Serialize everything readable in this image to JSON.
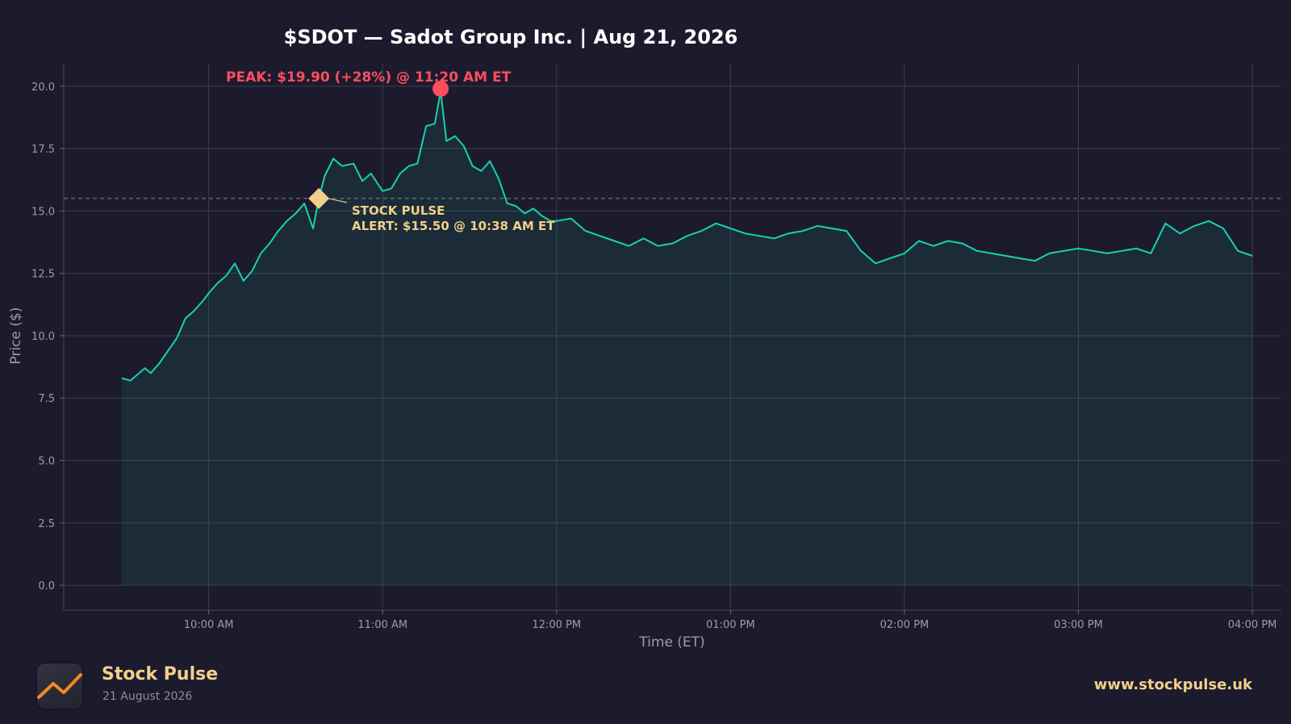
{
  "brand": {
    "name": "Stock Pulse",
    "date": "21 August 2026",
    "url": "www.stockpulse.uk",
    "logo_icon": "line-chart-logo-icon"
  },
  "colors": {
    "background": "#1c1b2e",
    "line": "#18d3a8",
    "peak": "#ff4d5e",
    "alert": "#f2cf8a",
    "grid": "#3c3c4f",
    "axis_text": "#9c9ba8"
  },
  "chart_data": {
    "type": "area",
    "title": "$SDOT — Sadot Group Inc.  |  Aug 21, 2026",
    "xlabel": "Time (ET)",
    "ylabel": "Price ($)",
    "ylim": [
      -1.0,
      20.9
    ],
    "yticks": [
      0.0,
      2.5,
      5.0,
      7.5,
      10.0,
      12.5,
      15.0,
      17.5,
      20.0
    ],
    "ytick_labels": [
      "0.0",
      "2.5",
      "5.0",
      "7.5",
      "10.0",
      "12.5",
      "15.0",
      "17.5",
      "20.0"
    ],
    "xlim": [
      "09:10",
      "16:10"
    ],
    "xticks": [
      "10:00",
      "11:00",
      "12:00",
      "13:00",
      "14:00",
      "15:00",
      "16:00"
    ],
    "xtick_labels": [
      "10:00 AM",
      "11:00 AM",
      "12:00 PM",
      "01:00 PM",
      "02:00 PM",
      "03:00 PM",
      "04:00 PM"
    ],
    "grid": true,
    "reference_line": {
      "y": 15.5,
      "style": "dashed"
    },
    "series": [
      {
        "x": [
          "09:30",
          "09:33",
          "09:36",
          "09:38",
          "09:40",
          "09:43",
          "09:46",
          "09:49",
          "09:52",
          "09:55",
          "09:58",
          "10:00",
          "10:03",
          "10:06",
          "10:09",
          "10:12",
          "10:15",
          "10:18",
          "10:21",
          "10:24",
          "10:27",
          "10:30",
          "10:33",
          "10:36",
          "10:38",
          "10:40",
          "10:43",
          "10:46",
          "10:50",
          "10:53",
          "10:56",
          "11:00",
          "11:03",
          "11:06",
          "11:09",
          "11:12",
          "11:15",
          "11:18",
          "11:20",
          "11:22",
          "11:25",
          "11:28",
          "11:31",
          "11:34",
          "11:37",
          "11:40",
          "11:43",
          "11:46",
          "11:49",
          "11:52",
          "11:55",
          "11:58",
          "12:00",
          "12:05",
          "12:10",
          "12:15",
          "12:20",
          "12:25",
          "12:30",
          "12:35",
          "12:40",
          "12:45",
          "12:50",
          "12:55",
          "13:00",
          "13:05",
          "13:10",
          "13:15",
          "13:20",
          "13:25",
          "13:30",
          "13:35",
          "13:40",
          "13:45",
          "13:50",
          "13:55",
          "14:00",
          "14:05",
          "14:10",
          "14:15",
          "14:20",
          "14:25",
          "14:30",
          "14:35",
          "14:40",
          "14:45",
          "14:50",
          "14:55",
          "15:00",
          "15:05",
          "15:10",
          "15:15",
          "15:20",
          "15:25",
          "15:30",
          "15:35",
          "15:40",
          "15:45",
          "15:50",
          "15:55",
          "16:00"
        ],
        "values": [
          8.3,
          8.2,
          8.5,
          8.7,
          8.5,
          8.9,
          9.4,
          9.9,
          10.7,
          11.0,
          11.4,
          11.7,
          12.1,
          12.4,
          12.9,
          12.2,
          12.6,
          13.3,
          13.7,
          14.2,
          14.6,
          14.9,
          15.3,
          14.3,
          15.5,
          16.4,
          17.1,
          16.8,
          16.9,
          16.2,
          16.5,
          15.8,
          15.9,
          16.5,
          16.8,
          16.9,
          18.4,
          18.5,
          19.8,
          17.8,
          18.0,
          17.6,
          16.8,
          16.6,
          17.0,
          16.3,
          15.3,
          15.2,
          14.9,
          15.1,
          14.8,
          14.6,
          14.6,
          14.7,
          14.2,
          14.0,
          13.8,
          13.6,
          13.9,
          13.6,
          13.7,
          14.0,
          14.2,
          14.5,
          14.3,
          14.1,
          14.0,
          13.9,
          14.1,
          14.2,
          14.4,
          14.3,
          14.2,
          13.4,
          12.9,
          13.1,
          13.3,
          13.8,
          13.6,
          13.8,
          13.7,
          13.4,
          13.3,
          13.2,
          13.1,
          13.0,
          13.3,
          13.4,
          13.5,
          13.4,
          13.3,
          13.4,
          13.5,
          13.3,
          14.5,
          14.1,
          14.4,
          14.6,
          14.3,
          13.4,
          13.2
        ]
      }
    ],
    "annotations": [
      {
        "label": "PEAK: $19.90 (+28%) @ 11:20 AM ET",
        "x": "11:20",
        "y": 19.9,
        "marker": "circle",
        "color": "#ff4d5e"
      },
      {
        "label_line1": "STOCK PULSE",
        "label_line2": "ALERT: $15.50 @ 10:38 AM ET",
        "x": "10:38",
        "y": 15.5,
        "marker": "diamond",
        "color": "#f2cf8a"
      }
    ]
  }
}
